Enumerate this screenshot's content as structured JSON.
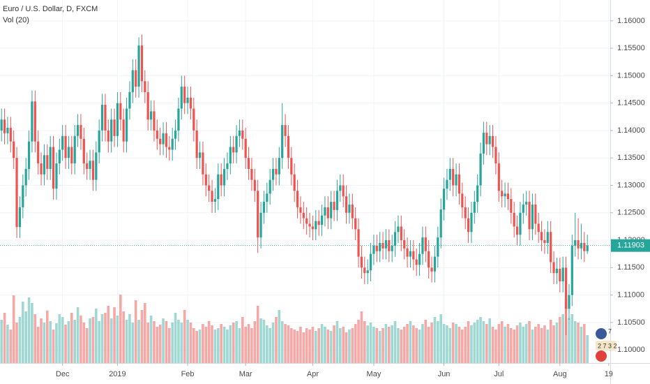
{
  "chart_data": {
    "type": "candlestick",
    "title": "Euro / U.S. Dollar, D, FXCM",
    "subtitle": "Vol (20)",
    "up_color": "#26a69a",
    "down_color": "#ef5350",
    "volume_up_color": "#9fd7d2",
    "volume_down_color": "#f6a8a6",
    "grid": true,
    "xlim": [
      -0.5,
      199.5
    ],
    "xticks": [
      {
        "value": 20,
        "label": "Dec"
      },
      {
        "value": 38,
        "label": "2019"
      },
      {
        "value": 61,
        "label": "Feb"
      },
      {
        "value": 80,
        "label": "Mar"
      },
      {
        "value": 102,
        "label": "Apr"
      },
      {
        "value": 122,
        "label": "May"
      },
      {
        "value": 145,
        "label": "Jun"
      },
      {
        "value": 163,
        "label": "Jul"
      },
      {
        "value": 183,
        "label": "Aug"
      },
      {
        "value": 199,
        "label": "19"
      }
    ],
    "ylim": [
      1.0976,
      1.1638
    ],
    "yticks": [
      {
        "value": 1.1,
        "label": "1.10000"
      },
      {
        "value": 1.105,
        "label": "1.10500"
      },
      {
        "value": 1.11,
        "label": "1.11000"
      },
      {
        "value": 1.115,
        "label": "1.11500"
      },
      {
        "value": 1.12,
        "label": "1.12000"
      },
      {
        "value": 1.125,
        "label": "1.12500"
      },
      {
        "value": 1.13,
        "label": "1.13000"
      },
      {
        "value": 1.135,
        "label": "1.13500"
      },
      {
        "value": 1.14,
        "label": "1.14000"
      },
      {
        "value": 1.145,
        "label": "1.14500"
      },
      {
        "value": 1.15,
        "label": "1.15000"
      },
      {
        "value": 1.155,
        "label": "1.15500"
      },
      {
        "value": 1.16,
        "label": "1.16000"
      }
    ],
    "vlim": [
      0,
      100
    ],
    "last_price": {
      "value": 1.11903,
      "label": "1.11903"
    },
    "badges": [
      "7",
      "2 7 3 2"
    ],
    "open": [
      1.14,
      1.142,
      1.1395,
      1.1405,
      1.138,
      1.135,
      1.1224,
      1.126,
      1.13,
      1.133,
      1.138,
      1.1453,
      1.138,
      1.134,
      1.132,
      1.1355,
      1.133,
      1.137,
      1.1294,
      1.134,
      1.1365,
      1.139,
      1.135,
      1.137,
      1.134,
      1.139,
      1.141,
      1.1385,
      1.134,
      1.133,
      1.1345,
      1.131,
      1.136,
      1.14,
      1.1447,
      1.14,
      1.138,
      1.142,
      1.139,
      1.145,
      1.142,
      1.138,
      1.144,
      1.147,
      1.151,
      1.148,
      1.1555,
      1.149,
      1.147,
      1.142,
      1.1435,
      1.14,
      1.1385,
      1.1375,
      1.1395,
      1.137,
      1.1365,
      1.1385,
      1.14,
      1.144,
      1.148,
      1.145,
      1.146,
      1.144,
      1.14,
      1.135,
      1.136,
      1.132,
      1.13,
      1.129,
      1.127,
      1.1275,
      1.132,
      1.13,
      1.133,
      1.134,
      1.137,
      1.136,
      1.139,
      1.14,
      1.1385,
      1.135,
      1.133,
      1.131,
      1.129,
      1.1205,
      1.125,
      1.127,
      1.1285,
      1.131,
      1.133,
      1.132,
      1.135,
      1.141,
      1.139,
      1.135,
      1.132,
      1.129,
      1.126,
      1.125,
      1.124,
      1.123,
      1.1225,
      1.122,
      1.1235,
      1.1228,
      1.1245,
      1.126,
      1.124,
      1.127,
      1.1255,
      1.129,
      1.13,
      1.128,
      1.125,
      1.1265,
      1.124,
      1.122,
      1.117,
      1.115,
      1.114,
      1.1145,
      1.1175,
      1.119,
      1.118,
      1.1195,
      1.1185,
      1.12,
      1.118,
      1.119,
      1.1215,
      1.1225,
      1.12,
      1.1185,
      1.117,
      1.118,
      1.1165,
      1.1155,
      1.1175,
      1.1205,
      1.118,
      1.115,
      1.1143,
      1.117,
      1.1205,
      1.1256,
      1.1294,
      1.131,
      1.133,
      1.13,
      1.132,
      1.1285,
      1.126,
      1.124,
      1.1215,
      1.125,
      1.127,
      1.13,
      1.1358,
      1.1396,
      1.1375,
      1.139,
      1.137,
      1.134,
      1.129,
      1.128,
      1.1285,
      1.1275,
      1.125,
      1.1225,
      1.121,
      1.125,
      1.1265,
      1.127,
      1.122,
      1.1265,
      1.123,
      1.1215,
      1.12,
      1.1195,
      1.1215,
      1.116,
      1.114,
      1.1148,
      1.1125,
      1.115,
      1.1075,
      1.11,
      1.119,
      1.12,
      1.1185,
      1.1195,
      1.118
    ],
    "high": [
      1.144,
      1.144,
      1.1425,
      1.1425,
      1.14,
      1.137,
      1.128,
      1.132,
      1.135,
      1.14,
      1.1473,
      1.1473,
      1.14,
      1.136,
      1.1375,
      1.1375,
      1.139,
      1.139,
      1.136,
      1.1385,
      1.141,
      1.141,
      1.139,
      1.139,
      1.141,
      1.143,
      1.143,
      1.1405,
      1.136,
      1.1365,
      1.1365,
      1.138,
      1.142,
      1.1467,
      1.1467,
      1.142,
      1.144,
      1.144,
      1.147,
      1.147,
      1.144,
      1.146,
      1.149,
      1.153,
      1.153,
      1.157,
      1.1575,
      1.151,
      1.149,
      1.1455,
      1.1455,
      1.142,
      1.1405,
      1.1415,
      1.1415,
      1.139,
      1.1405,
      1.142,
      1.146,
      1.15,
      1.15,
      1.148,
      1.148,
      1.146,
      1.142,
      1.138,
      1.138,
      1.134,
      1.132,
      1.131,
      1.1295,
      1.134,
      1.134,
      1.135,
      1.136,
      1.139,
      1.139,
      1.141,
      1.142,
      1.142,
      1.1405,
      1.137,
      1.135,
      1.133,
      1.131,
      1.127,
      1.129,
      1.1305,
      1.133,
      1.135,
      1.135,
      1.137,
      1.145,
      1.143,
      1.141,
      1.137,
      1.134,
      1.131,
      1.128,
      1.127,
      1.126,
      1.125,
      1.1245,
      1.1255,
      1.1255,
      1.1265,
      1.128,
      1.128,
      1.129,
      1.129,
      1.131,
      1.132,
      1.132,
      1.13,
      1.1285,
      1.1285,
      1.126,
      1.124,
      1.119,
      1.117,
      1.1165,
      1.1195,
      1.121,
      1.121,
      1.1215,
      1.1215,
      1.122,
      1.122,
      1.121,
      1.1235,
      1.1245,
      1.1245,
      1.122,
      1.1205,
      1.12,
      1.12,
      1.1185,
      1.1195,
      1.1225,
      1.1225,
      1.12,
      1.117,
      1.119,
      1.1225,
      1.1276,
      1.1314,
      1.133,
      1.135,
      1.135,
      1.134,
      1.134,
      1.1305,
      1.128,
      1.126,
      1.127,
      1.129,
      1.132,
      1.1378,
      1.1416,
      1.1416,
      1.141,
      1.141,
      1.139,
      1.136,
      1.131,
      1.1305,
      1.1305,
      1.1295,
      1.127,
      1.1245,
      1.127,
      1.1285,
      1.129,
      1.129,
      1.1285,
      1.1285,
      1.125,
      1.1235,
      1.122,
      1.1235,
      1.1235,
      1.118,
      1.1168,
      1.1168,
      1.117,
      1.117,
      1.112,
      1.121,
      1.125,
      1.124,
      1.123,
      1.1215,
      1.121
    ],
    "low": [
      1.138,
      1.1375,
      1.1375,
      1.136,
      1.133,
      1.1204,
      1.1204,
      1.124,
      1.128,
      1.131,
      1.136,
      1.136,
      1.132,
      1.13,
      1.13,
      1.131,
      1.131,
      1.1274,
      1.1274,
      1.132,
      1.1345,
      1.133,
      1.133,
      1.132,
      1.132,
      1.137,
      1.1365,
      1.132,
      1.131,
      1.131,
      1.129,
      1.129,
      1.134,
      1.138,
      1.138,
      1.136,
      1.136,
      1.137,
      1.137,
      1.14,
      1.136,
      1.136,
      1.142,
      1.145,
      1.146,
      1.146,
      1.147,
      1.145,
      1.14,
      1.14,
      1.138,
      1.1365,
      1.1355,
      1.1355,
      1.135,
      1.1345,
      1.1345,
      1.1365,
      1.138,
      1.142,
      1.143,
      1.143,
      1.142,
      1.138,
      1.133,
      1.133,
      1.13,
      1.128,
      1.127,
      1.125,
      1.125,
      1.1255,
      1.128,
      1.128,
      1.131,
      1.132,
      1.134,
      1.134,
      1.137,
      1.1365,
      1.133,
      1.131,
      1.129,
      1.127,
      1.1177,
      1.1185,
      1.123,
      1.125,
      1.1265,
      1.129,
      1.13,
      1.13,
      1.133,
      1.137,
      1.133,
      1.13,
      1.127,
      1.124,
      1.123,
      1.122,
      1.121,
      1.1205,
      1.12,
      1.12,
      1.1208,
      1.1208,
      1.1225,
      1.122,
      1.122,
      1.1235,
      1.1235,
      1.127,
      1.126,
      1.123,
      1.123,
      1.122,
      1.12,
      1.115,
      1.113,
      1.112,
      1.112,
      1.1125,
      1.1155,
      1.116,
      1.116,
      1.1165,
      1.1165,
      1.116,
      1.116,
      1.117,
      1.1195,
      1.118,
      1.1165,
      1.115,
      1.115,
      1.1145,
      1.1135,
      1.1135,
      1.1155,
      1.116,
      1.113,
      1.1123,
      1.1123,
      1.115,
      1.1185,
      1.1236,
      1.1274,
      1.129,
      1.128,
      1.128,
      1.1265,
      1.124,
      1.122,
      1.1195,
      1.1195,
      1.123,
      1.125,
      1.128,
      1.1338,
      1.1355,
      1.1355,
      1.135,
      1.132,
      1.127,
      1.126,
      1.126,
      1.1255,
      1.123,
      1.1205,
      1.119,
      1.119,
      1.123,
      1.1245,
      1.12,
      1.12,
      1.121,
      1.1195,
      1.118,
      1.1175,
      1.1175,
      1.114,
      1.112,
      1.112,
      1.1105,
      1.1105,
      1.1027,
      1.1055,
      1.108,
      1.117,
      1.1165,
      1.1165,
      1.116,
      1.1175
    ],
    "close": [
      1.142,
      1.1395,
      1.1405,
      1.138,
      1.135,
      1.1224,
      1.126,
      1.13,
      1.133,
      1.138,
      1.1453,
      1.138,
      1.134,
      1.132,
      1.1355,
      1.133,
      1.137,
      1.1294,
      1.134,
      1.1365,
      1.139,
      1.135,
      1.137,
      1.134,
      1.139,
      1.141,
      1.1385,
      1.134,
      1.133,
      1.1345,
      1.131,
      1.136,
      1.14,
      1.1447,
      1.14,
      1.138,
      1.142,
      1.139,
      1.145,
      1.142,
      1.138,
      1.144,
      1.147,
      1.151,
      1.148,
      1.1555,
      1.149,
      1.147,
      1.142,
      1.1435,
      1.14,
      1.1385,
      1.1375,
      1.1395,
      1.137,
      1.1365,
      1.1385,
      1.14,
      1.144,
      1.148,
      1.145,
      1.146,
      1.144,
      1.14,
      1.135,
      1.136,
      1.132,
      1.13,
      1.129,
      1.127,
      1.1275,
      1.132,
      1.13,
      1.133,
      1.134,
      1.137,
      1.136,
      1.139,
      1.14,
      1.1385,
      1.135,
      1.133,
      1.131,
      1.129,
      1.1205,
      1.125,
      1.127,
      1.1285,
      1.131,
      1.133,
      1.132,
      1.135,
      1.141,
      1.139,
      1.135,
      1.132,
      1.129,
      1.126,
      1.125,
      1.124,
      1.123,
      1.1225,
      1.122,
      1.1235,
      1.1228,
      1.1245,
      1.126,
      1.124,
      1.127,
      1.1255,
      1.129,
      1.13,
      1.128,
      1.125,
      1.1265,
      1.124,
      1.122,
      1.117,
      1.115,
      1.114,
      1.1145,
      1.1175,
      1.119,
      1.118,
      1.1195,
      1.1185,
      1.12,
      1.118,
      1.119,
      1.1215,
      1.1225,
      1.12,
      1.1185,
      1.117,
      1.118,
      1.1165,
      1.1155,
      1.1175,
      1.1205,
      1.118,
      1.115,
      1.1143,
      1.117,
      1.1205,
      1.1256,
      1.1294,
      1.131,
      1.133,
      1.13,
      1.132,
      1.1285,
      1.126,
      1.124,
      1.1215,
      1.125,
      1.127,
      1.13,
      1.1358,
      1.1396,
      1.1375,
      1.139,
      1.137,
      1.134,
      1.129,
      1.128,
      1.1285,
      1.1275,
      1.125,
      1.1225,
      1.121,
      1.125,
      1.1265,
      1.127,
      1.122,
      1.1265,
      1.123,
      1.1215,
      1.12,
      1.1195,
      1.1215,
      1.116,
      1.114,
      1.1148,
      1.1125,
      1.115,
      1.1075,
      1.11,
      1.119,
      1.12,
      1.1185,
      1.1195,
      1.118,
      1.11903
    ],
    "volume": [
      62,
      72,
      55,
      48,
      97,
      58,
      66,
      88,
      74,
      94,
      86,
      70,
      52,
      64,
      58,
      75,
      60,
      48,
      57,
      70,
      66,
      55,
      60,
      72,
      62,
      80,
      68,
      58,
      50,
      64,
      66,
      78,
      60,
      70,
      72,
      82,
      64,
      80,
      68,
      98,
      74,
      62,
      70,
      58,
      90,
      62,
      76,
      86,
      58,
      68,
      60,
      52,
      55,
      64,
      60,
      50,
      58,
      72,
      62,
      58,
      76,
      62,
      58,
      50,
      46,
      48,
      56,
      52,
      60,
      54,
      48,
      50,
      56,
      52,
      48,
      54,
      58,
      60,
      50,
      66,
      52,
      56,
      50,
      60,
      82,
      64,
      62,
      54,
      50,
      58,
      66,
      76,
      60,
      56,
      54,
      50,
      48,
      46,
      52,
      44,
      50,
      48,
      52,
      46,
      50,
      56,
      52,
      48,
      46,
      54,
      60,
      50,
      52,
      44,
      48,
      50,
      56,
      62,
      74,
      60,
      54,
      58,
      52,
      50,
      46,
      50,
      56,
      52,
      54,
      60,
      50,
      48,
      52,
      56,
      60,
      54,
      50,
      48,
      56,
      62,
      52,
      58,
      66,
      60,
      70,
      56,
      54,
      50,
      58,
      56,
      52,
      48,
      52,
      60,
      54,
      58,
      62,
      66,
      60,
      56,
      64,
      52,
      48,
      56,
      60,
      52,
      56,
      50,
      48,
      54,
      58,
      52,
      56,
      60,
      48,
      52,
      56,
      50,
      54,
      48,
      62,
      54,
      58,
      66,
      70,
      92,
      64,
      70,
      60,
      58,
      52,
      56,
      40
    ]
  }
}
